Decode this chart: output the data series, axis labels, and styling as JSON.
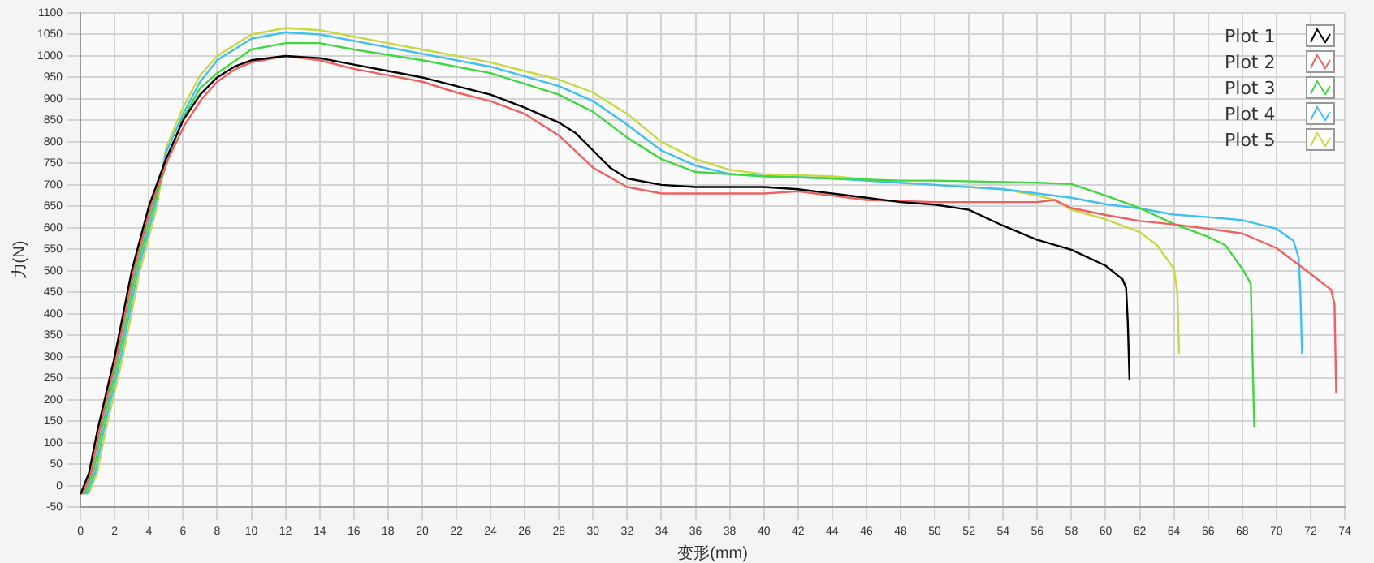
{
  "chart_data": {
    "type": "line",
    "xlabel": "变形(mm)",
    "ylabel": "力(N)",
    "xlim": [
      0,
      74
    ],
    "xticks": [
      0,
      2,
      4,
      6,
      8,
      10,
      12,
      14,
      16,
      18,
      20,
      22,
      24,
      26,
      28,
      30,
      32,
      34,
      36,
      38,
      40,
      42,
      44,
      46,
      48,
      50,
      52,
      54,
      56,
      58,
      60,
      62,
      64,
      66,
      68,
      70,
      72,
      74
    ],
    "ylim": [
      -50,
      1100
    ],
    "yticks": [
      -50,
      0,
      50,
      100,
      150,
      200,
      250,
      300,
      350,
      400,
      450,
      500,
      550,
      600,
      650,
      700,
      750,
      800,
      850,
      900,
      950,
      1000,
      1050,
      1100
    ],
    "grid": true,
    "legend": "top right",
    "marker": "none",
    "line_style": "solid",
    "series": [
      {
        "name": "Plot 1",
        "color": "#000000",
        "x": [
          0,
          0.5,
          1,
          2,
          3,
          4,
          5,
          6,
          7,
          8,
          9,
          10,
          12,
          14,
          16,
          18,
          20,
          22,
          24,
          26,
          28,
          29,
          30,
          31,
          32,
          34,
          36,
          40,
          42,
          44,
          46,
          48,
          50,
          52,
          54,
          56,
          58,
          60,
          61,
          61.2,
          61.3,
          61.4
        ],
        "values": [
          -20,
          30,
          130,
          300,
          500,
          650,
          760,
          850,
          910,
          950,
          975,
          990,
          1000,
          995,
          980,
          965,
          950,
          930,
          910,
          880,
          845,
          820,
          780,
          740,
          715,
          700,
          695,
          695,
          690,
          680,
          670,
          660,
          654,
          642,
          605,
          572,
          549,
          512,
          480,
          460,
          380,
          245
        ]
      },
      {
        "name": "Plot 2",
        "color": "#f06060",
        "x": [
          0.12,
          0.62,
          1.12,
          2.12,
          3.12,
          4.12,
          5.12,
          6.1,
          7.1,
          8,
          9,
          10,
          12,
          14,
          16,
          18,
          20,
          22,
          24,
          26,
          28,
          30,
          32,
          34,
          36,
          40,
          42,
          44,
          46,
          50,
          52,
          56,
          57,
          58,
          60,
          62,
          64,
          66,
          68,
          70,
          72,
          73.2,
          73.4,
          73.5
        ],
        "values": [
          -20,
          30,
          130,
          300,
          500,
          650,
          760,
          840,
          900,
          940,
          968,
          985,
          1000,
          990,
          970,
          955,
          940,
          915,
          895,
          865,
          815,
          740,
          695,
          680,
          680,
          680,
          685,
          675,
          665,
          660,
          660,
          660,
          665,
          646,
          630,
          616,
          608,
          598,
          587,
          553,
          493,
          456,
          423,
          215
        ]
      },
      {
        "name": "Plot 3",
        "color": "#40d840",
        "x": [
          0.24,
          0.74,
          1.24,
          2.24,
          3.24,
          4.24,
          5.2,
          6,
          7,
          8,
          10,
          12,
          14,
          16,
          20,
          24,
          28,
          30,
          32,
          34,
          36,
          40,
          44,
          48,
          50,
          56,
          58,
          60,
          62,
          64,
          66,
          67,
          68,
          68.5,
          68.6,
          68.7
        ],
        "values": [
          -20,
          30,
          130,
          300,
          500,
          650,
          770,
          855,
          925,
          960,
          1015,
          1030,
          1030,
          1015,
          990,
          960,
          910,
          870,
          810,
          760,
          730,
          720,
          715,
          710,
          710,
          705,
          702,
          675,
          646,
          609,
          579,
          560,
          505,
          470,
          300,
          137
        ]
      },
      {
        "name": "Plot 4",
        "color": "#40c0f0",
        "x": [
          0.36,
          0.86,
          1.36,
          2.36,
          3.36,
          4.36,
          5,
          6,
          7,
          8,
          10,
          12,
          14,
          16,
          20,
          24,
          28,
          30,
          32,
          34,
          36,
          38,
          40,
          44,
          48,
          50,
          54,
          56,
          58,
          60,
          62,
          64,
          66,
          68,
          70,
          71,
          71.3,
          71.4,
          71.5
        ],
        "values": [
          -20,
          30,
          130,
          300,
          500,
          650,
          775,
          865,
          940,
          990,
          1040,
          1055,
          1050,
          1035,
          1005,
          975,
          930,
          895,
          840,
          780,
          745,
          725,
          720,
          715,
          705,
          700,
          690,
          680,
          670,
          655,
          645,
          631,
          625,
          618,
          598,
          570,
          530,
          450,
          307
        ]
      },
      {
        "name": "Plot 5",
        "color": "#c8d840",
        "x": [
          0.48,
          0.98,
          1.48,
          2.48,
          3.48,
          4.48,
          5,
          6,
          7,
          8,
          10,
          12,
          14,
          16,
          20,
          24,
          26,
          28,
          30,
          32,
          34,
          36,
          38,
          40,
          44,
          48,
          50,
          54,
          56,
          57,
          58,
          60,
          62,
          63,
          64,
          64.2,
          64.3
        ],
        "values": [
          -20,
          30,
          130,
          300,
          500,
          650,
          785,
          880,
          955,
          1000,
          1050,
          1065,
          1060,
          1045,
          1015,
          985,
          965,
          945,
          915,
          865,
          800,
          760,
          735,
          725,
          720,
          705,
          700,
          690,
          675,
          665,
          642,
          620,
          590,
          560,
          505,
          450,
          307
        ]
      }
    ]
  }
}
